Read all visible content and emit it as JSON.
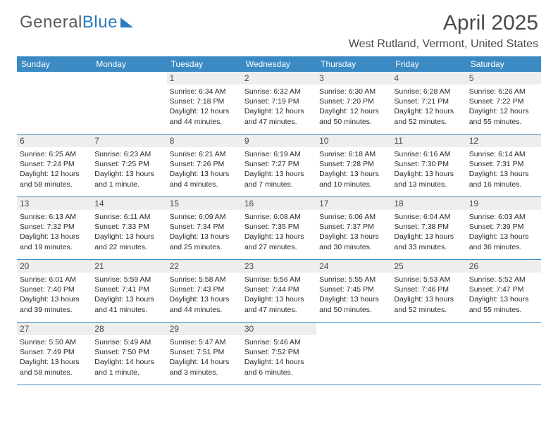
{
  "logo": {
    "text_general": "General",
    "text_blue": "Blue"
  },
  "header": {
    "title": "April 2025",
    "location": "West Rutland, Vermont, United States"
  },
  "colors": {
    "header_bg": "#3b8ac4",
    "header_text": "#ffffff",
    "daynum_bg": "#eeeeee",
    "border": "#3b8ac4",
    "body_text": "#2a2a2a",
    "title_text": "#4a4a4a",
    "logo_gray": "#5a5a5a",
    "logo_blue": "#2b7bbf",
    "page_bg": "#ffffff"
  },
  "fonts": {
    "title_size_pt": 22,
    "location_size_pt": 12,
    "dayheader_size_pt": 9,
    "daynum_size_pt": 9,
    "info_size_pt": 8
  },
  "day_labels": [
    "Sunday",
    "Monday",
    "Tuesday",
    "Wednesday",
    "Thursday",
    "Friday",
    "Saturday"
  ],
  "weeks": [
    [
      {
        "day": "",
        "sunrise": "",
        "sunset": "",
        "daylight": ""
      },
      {
        "day": "",
        "sunrise": "",
        "sunset": "",
        "daylight": ""
      },
      {
        "day": "1",
        "sunrise": "Sunrise: 6:34 AM",
        "sunset": "Sunset: 7:18 PM",
        "daylight": "Daylight: 12 hours and 44 minutes."
      },
      {
        "day": "2",
        "sunrise": "Sunrise: 6:32 AM",
        "sunset": "Sunset: 7:19 PM",
        "daylight": "Daylight: 12 hours and 47 minutes."
      },
      {
        "day": "3",
        "sunrise": "Sunrise: 6:30 AM",
        "sunset": "Sunset: 7:20 PM",
        "daylight": "Daylight: 12 hours and 50 minutes."
      },
      {
        "day": "4",
        "sunrise": "Sunrise: 6:28 AM",
        "sunset": "Sunset: 7:21 PM",
        "daylight": "Daylight: 12 hours and 52 minutes."
      },
      {
        "day": "5",
        "sunrise": "Sunrise: 6:26 AM",
        "sunset": "Sunset: 7:22 PM",
        "daylight": "Daylight: 12 hours and 55 minutes."
      }
    ],
    [
      {
        "day": "6",
        "sunrise": "Sunrise: 6:25 AM",
        "sunset": "Sunset: 7:24 PM",
        "daylight": "Daylight: 12 hours and 58 minutes."
      },
      {
        "day": "7",
        "sunrise": "Sunrise: 6:23 AM",
        "sunset": "Sunset: 7:25 PM",
        "daylight": "Daylight: 13 hours and 1 minute."
      },
      {
        "day": "8",
        "sunrise": "Sunrise: 6:21 AM",
        "sunset": "Sunset: 7:26 PM",
        "daylight": "Daylight: 13 hours and 4 minutes."
      },
      {
        "day": "9",
        "sunrise": "Sunrise: 6:19 AM",
        "sunset": "Sunset: 7:27 PM",
        "daylight": "Daylight: 13 hours and 7 minutes."
      },
      {
        "day": "10",
        "sunrise": "Sunrise: 6:18 AM",
        "sunset": "Sunset: 7:28 PM",
        "daylight": "Daylight: 13 hours and 10 minutes."
      },
      {
        "day": "11",
        "sunrise": "Sunrise: 6:16 AM",
        "sunset": "Sunset: 7:30 PM",
        "daylight": "Daylight: 13 hours and 13 minutes."
      },
      {
        "day": "12",
        "sunrise": "Sunrise: 6:14 AM",
        "sunset": "Sunset: 7:31 PM",
        "daylight": "Daylight: 13 hours and 16 minutes."
      }
    ],
    [
      {
        "day": "13",
        "sunrise": "Sunrise: 6:13 AM",
        "sunset": "Sunset: 7:32 PM",
        "daylight": "Daylight: 13 hours and 19 minutes."
      },
      {
        "day": "14",
        "sunrise": "Sunrise: 6:11 AM",
        "sunset": "Sunset: 7:33 PM",
        "daylight": "Daylight: 13 hours and 22 minutes."
      },
      {
        "day": "15",
        "sunrise": "Sunrise: 6:09 AM",
        "sunset": "Sunset: 7:34 PM",
        "daylight": "Daylight: 13 hours and 25 minutes."
      },
      {
        "day": "16",
        "sunrise": "Sunrise: 6:08 AM",
        "sunset": "Sunset: 7:35 PM",
        "daylight": "Daylight: 13 hours and 27 minutes."
      },
      {
        "day": "17",
        "sunrise": "Sunrise: 6:06 AM",
        "sunset": "Sunset: 7:37 PM",
        "daylight": "Daylight: 13 hours and 30 minutes."
      },
      {
        "day": "18",
        "sunrise": "Sunrise: 6:04 AM",
        "sunset": "Sunset: 7:38 PM",
        "daylight": "Daylight: 13 hours and 33 minutes."
      },
      {
        "day": "19",
        "sunrise": "Sunrise: 6:03 AM",
        "sunset": "Sunset: 7:39 PM",
        "daylight": "Daylight: 13 hours and 36 minutes."
      }
    ],
    [
      {
        "day": "20",
        "sunrise": "Sunrise: 6:01 AM",
        "sunset": "Sunset: 7:40 PM",
        "daylight": "Daylight: 13 hours and 39 minutes."
      },
      {
        "day": "21",
        "sunrise": "Sunrise: 5:59 AM",
        "sunset": "Sunset: 7:41 PM",
        "daylight": "Daylight: 13 hours and 41 minutes."
      },
      {
        "day": "22",
        "sunrise": "Sunrise: 5:58 AM",
        "sunset": "Sunset: 7:43 PM",
        "daylight": "Daylight: 13 hours and 44 minutes."
      },
      {
        "day": "23",
        "sunrise": "Sunrise: 5:56 AM",
        "sunset": "Sunset: 7:44 PM",
        "daylight": "Daylight: 13 hours and 47 minutes."
      },
      {
        "day": "24",
        "sunrise": "Sunrise: 5:55 AM",
        "sunset": "Sunset: 7:45 PM",
        "daylight": "Daylight: 13 hours and 50 minutes."
      },
      {
        "day": "25",
        "sunrise": "Sunrise: 5:53 AM",
        "sunset": "Sunset: 7:46 PM",
        "daylight": "Daylight: 13 hours and 52 minutes."
      },
      {
        "day": "26",
        "sunrise": "Sunrise: 5:52 AM",
        "sunset": "Sunset: 7:47 PM",
        "daylight": "Daylight: 13 hours and 55 minutes."
      }
    ],
    [
      {
        "day": "27",
        "sunrise": "Sunrise: 5:50 AM",
        "sunset": "Sunset: 7:49 PM",
        "daylight": "Daylight: 13 hours and 58 minutes."
      },
      {
        "day": "28",
        "sunrise": "Sunrise: 5:49 AM",
        "sunset": "Sunset: 7:50 PM",
        "daylight": "Daylight: 14 hours and 1 minute."
      },
      {
        "day": "29",
        "sunrise": "Sunrise: 5:47 AM",
        "sunset": "Sunset: 7:51 PM",
        "daylight": "Daylight: 14 hours and 3 minutes."
      },
      {
        "day": "30",
        "sunrise": "Sunrise: 5:46 AM",
        "sunset": "Sunset: 7:52 PM",
        "daylight": "Daylight: 14 hours and 6 minutes."
      },
      {
        "day": "",
        "sunrise": "",
        "sunset": "",
        "daylight": ""
      },
      {
        "day": "",
        "sunrise": "",
        "sunset": "",
        "daylight": ""
      },
      {
        "day": "",
        "sunrise": "",
        "sunset": "",
        "daylight": ""
      }
    ]
  ]
}
